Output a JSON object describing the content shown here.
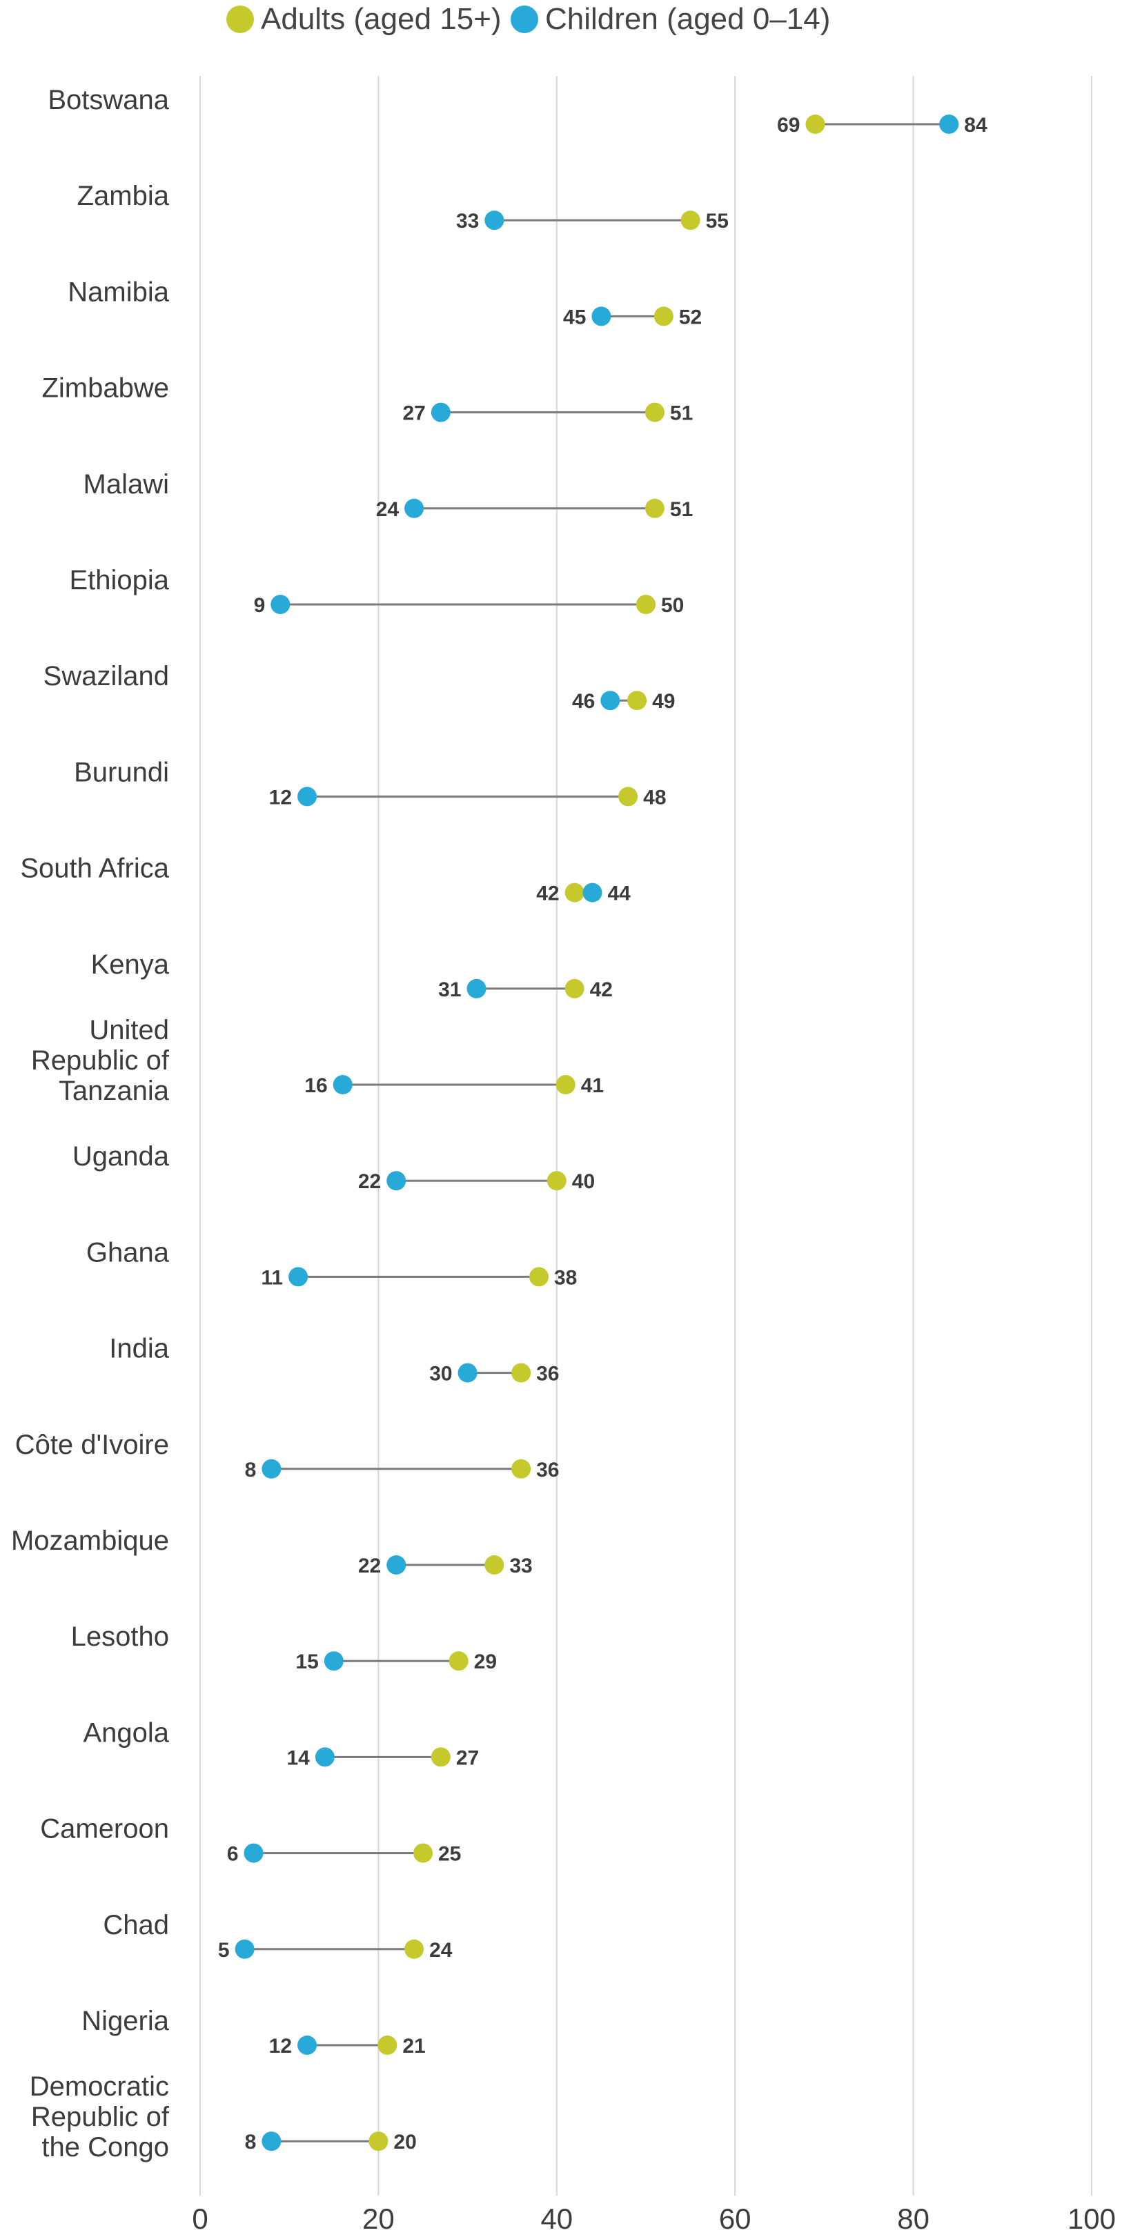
{
  "chart_data": {
    "type": "dumbbell",
    "title": "",
    "xlabel": "",
    "ylabel": "",
    "xlim": [
      0,
      100
    ],
    "xticks": [
      "0",
      "20",
      "40",
      "60",
      "80",
      "100"
    ],
    "grid": "vertical",
    "legend_position": "top",
    "series": [
      {
        "name": "Adults (aged 15+)",
        "color": "#c5c92b"
      },
      {
        "name": "Children (aged 0–14)",
        "color": "#27aad8"
      }
    ],
    "categories": [
      {
        "label": [
          "Botswana"
        ],
        "adults": 69,
        "children": 84
      },
      {
        "label": [
          "Zambia"
        ],
        "adults": 55,
        "children": 33
      },
      {
        "label": [
          "Namibia"
        ],
        "adults": 52,
        "children": 45
      },
      {
        "label": [
          "Zimbabwe"
        ],
        "adults": 51,
        "children": 27
      },
      {
        "label": [
          "Malawi"
        ],
        "adults": 51,
        "children": 24
      },
      {
        "label": [
          "Ethiopia"
        ],
        "adults": 50,
        "children": 9
      },
      {
        "label": [
          "Swaziland"
        ],
        "adults": 49,
        "children": 46
      },
      {
        "label": [
          "Burundi"
        ],
        "adults": 48,
        "children": 12
      },
      {
        "label": [
          "South Africa"
        ],
        "adults": 42,
        "children": 44
      },
      {
        "label": [
          "Kenya"
        ],
        "adults": 42,
        "children": 31
      },
      {
        "label": [
          "United",
          "Republic of",
          "Tanzania"
        ],
        "adults": 41,
        "children": 16
      },
      {
        "label": [
          "Uganda"
        ],
        "adults": 40,
        "children": 22
      },
      {
        "label": [
          "Ghana"
        ],
        "adults": 38,
        "children": 11
      },
      {
        "label": [
          "India"
        ],
        "adults": 36,
        "children": 30
      },
      {
        "label": [
          "Côte d'Ivoire"
        ],
        "adults": 36,
        "children": 8
      },
      {
        "label": [
          "Mozambique"
        ],
        "adults": 33,
        "children": 22
      },
      {
        "label": [
          "Lesotho"
        ],
        "adults": 29,
        "children": 15
      },
      {
        "label": [
          "Angola"
        ],
        "adults": 27,
        "children": 14
      },
      {
        "label": [
          "Cameroon"
        ],
        "adults": 25,
        "children": 6
      },
      {
        "label": [
          "Chad"
        ],
        "adults": 24,
        "children": 5
      },
      {
        "label": [
          "Nigeria"
        ],
        "adults": 21,
        "children": 12
      },
      {
        "label": [
          "Democratic",
          "Republic of",
          "the Congo"
        ],
        "adults": 20,
        "children": 8
      }
    ]
  }
}
